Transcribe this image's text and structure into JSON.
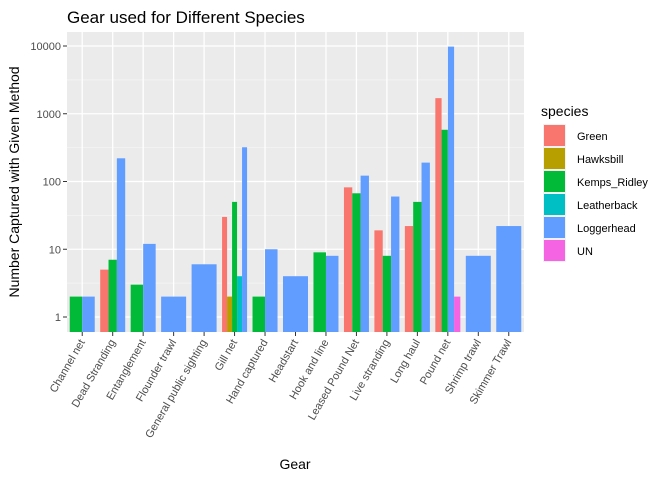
{
  "chart_data": {
    "type": "bar",
    "title": "Gear used for Different Species",
    "xlabel": "Gear",
    "ylabel": "Number Captured with Given Method",
    "y_scale": "log10",
    "ylim": [
      0.8,
      13000
    ],
    "y_ticks": [
      1,
      10,
      100,
      1000,
      10000
    ],
    "y_tick_labels": [
      "1",
      "10",
      "100",
      "1000",
      "10000"
    ],
    "grid": true,
    "legend_title": "species",
    "legend_position": "right",
    "categories": [
      "Channel net",
      "Dead Stranding",
      "Entanglement",
      "Flounder trawl",
      "General public sighting",
      "Gill net",
      "Hand captured",
      "Headstart",
      "Hook and line",
      "Leased Pound Net",
      "Live stranding",
      "Long haul",
      "Pound net",
      "Shrimp trawl",
      "Skimmer Trawl"
    ],
    "series": [
      {
        "name": "Green",
        "color": "#F8766D",
        "values": [
          null,
          5,
          null,
          null,
          null,
          30,
          null,
          null,
          null,
          82,
          19,
          22,
          1700,
          null,
          null
        ]
      },
      {
        "name": "Hawksbill",
        "color": "#B79F00",
        "values": [
          null,
          null,
          null,
          null,
          null,
          2,
          null,
          null,
          null,
          null,
          null,
          null,
          null,
          null,
          null
        ]
      },
      {
        "name": "Kemps_Ridley",
        "color": "#00BA38",
        "values": [
          2,
          7,
          3,
          null,
          null,
          50,
          2,
          null,
          9,
          67,
          8,
          50,
          580,
          null,
          null
        ]
      },
      {
        "name": "Leatherback",
        "color": "#00BFC4",
        "values": [
          null,
          null,
          null,
          null,
          null,
          4,
          null,
          null,
          null,
          null,
          null,
          null,
          null,
          null,
          null
        ]
      },
      {
        "name": "Loggerhead",
        "color": "#619CFF",
        "values": [
          2,
          220,
          12,
          2,
          6,
          320,
          10,
          4,
          8,
          122,
          60,
          190,
          9800,
          8,
          22
        ]
      },
      {
        "name": "UN",
        "color": "#F564E3",
        "values": [
          null,
          null,
          null,
          null,
          null,
          null,
          null,
          null,
          null,
          null,
          null,
          null,
          2,
          null,
          null
        ]
      }
    ]
  }
}
